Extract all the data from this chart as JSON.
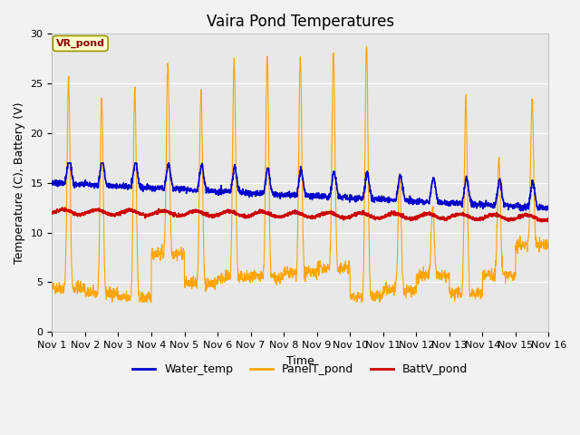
{
  "title": "Vaira Pond Temperatures",
  "xlabel": "Time",
  "ylabel": "Temperature (C), Battery (V)",
  "xlim": [
    0,
    15
  ],
  "ylim": [
    0,
    30
  ],
  "yticks": [
    0,
    5,
    10,
    15,
    20,
    25,
    30
  ],
  "xtick_labels": [
    "Nov 1",
    "Nov 2",
    "Nov 3",
    "Nov 4",
    "Nov 5",
    "Nov 6",
    "Nov 7",
    "Nov 8",
    "Nov 9",
    "Nov 10",
    "Nov 11",
    "Nov 12",
    "Nov 13",
    "Nov 14",
    "Nov 15",
    "Nov 16"
  ],
  "annotation_text": "VR_pond",
  "water_temp_color": "#0000cc",
  "panel_temp_color": "#FFA500",
  "batt_v_color": "#cc0000",
  "plot_bg_color": "#e8e8e8",
  "fig_bg_color": "#f2f2f2",
  "legend_labels": [
    "Water_temp",
    "PanelT_pond",
    "BattV_pond"
  ],
  "title_fontsize": 12,
  "axis_label_fontsize": 9,
  "tick_fontsize": 8,
  "legend_fontsize": 9
}
